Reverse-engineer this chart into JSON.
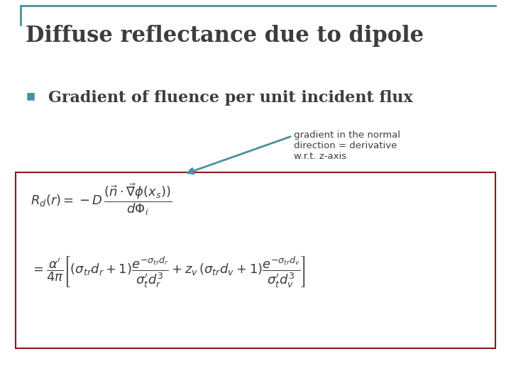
{
  "title": "Diffuse reflectance due to dipole",
  "title_color": "#3d3d3d",
  "title_fontsize": 22,
  "title_font": "serif",
  "bullet_text": "Gradient of fluence per unit incident flux",
  "bullet_fontsize": 16,
  "bullet_color": "#3d3d3d",
  "bullet_marker_color": "#4a90a4",
  "annotation_text": "gradient in the normal\ndirection = derivative\nw.r.t. z-axis",
  "annotation_fontsize": 9.5,
  "annotation_color": "#3d3d3d",
  "arrow_color": "#4a90a4",
  "box_edge_color": "#8b1a1a",
  "box_face_color": "#ffffff",
  "header_line_color": "#4a90a4",
  "bg_color": "#ffffff",
  "eq_color": "#3d3d3d",
  "eq_fontsize": 13
}
